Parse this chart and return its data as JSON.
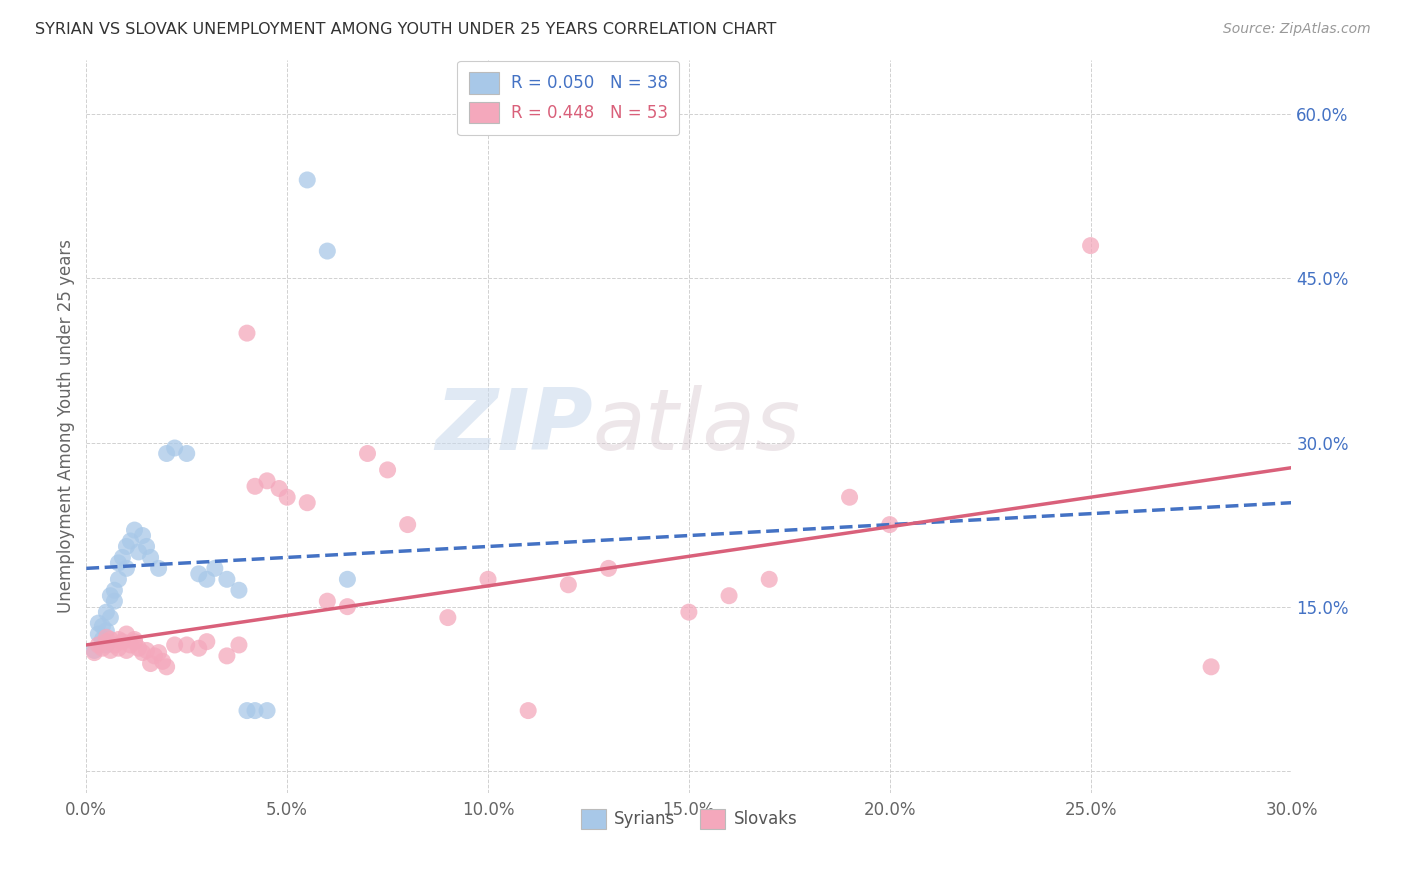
{
  "title": "SYRIAN VS SLOVAK UNEMPLOYMENT AMONG YOUTH UNDER 25 YEARS CORRELATION CHART",
  "source": "Source: ZipAtlas.com",
  "ylabel_label": "Unemployment Among Youth under 25 years",
  "xlabel_legend": [
    "Syrians",
    "Slovaks"
  ],
  "legend_line1": "R = 0.050   N = 38",
  "legend_line2": "R = 0.448   N = 53",
  "syrian_color": "#a8c8e8",
  "slovak_color": "#f4a8bc",
  "syrian_line_color": "#4472c4",
  "slovak_line_color": "#d9607a",
  "background_color": "#ffffff",
  "watermark_zip": "ZIP",
  "watermark_atlas": "atlas",
  "xlim": [
    0.0,
    0.3
  ],
  "ylim": [
    -0.02,
    0.65
  ],
  "xticks": [
    0.0,
    0.05,
    0.1,
    0.15,
    0.2,
    0.25,
    0.3
  ],
  "yticks": [
    0.0,
    0.15,
    0.3,
    0.45,
    0.6
  ],
  "xtick_labels": [
    "0.0%",
    "5.0%",
    "10.0%",
    "15.0%",
    "20.0%",
    "25.0%",
    "30.0%"
  ],
  "ytick_labels": [
    "",
    "15.0%",
    "30.0%",
    "45.0%",
    "60.0%"
  ],
  "syrian_line_start_y": 0.185,
  "syrian_line_end_y": 0.245,
  "slovak_line_start_y": 0.115,
  "slovak_line_end_y": 0.277,
  "syrian_scatter_x": [
    0.002,
    0.003,
    0.003,
    0.004,
    0.004,
    0.005,
    0.005,
    0.005,
    0.006,
    0.006,
    0.007,
    0.007,
    0.008,
    0.008,
    0.009,
    0.01,
    0.01,
    0.011,
    0.012,
    0.013,
    0.014,
    0.015,
    0.016,
    0.018,
    0.02,
    0.022,
    0.025,
    0.028,
    0.03,
    0.032,
    0.035,
    0.038,
    0.04,
    0.042,
    0.045,
    0.055,
    0.06,
    0.065
  ],
  "syrian_scatter_y": [
    0.11,
    0.125,
    0.135,
    0.12,
    0.132,
    0.128,
    0.145,
    0.115,
    0.14,
    0.16,
    0.155,
    0.165,
    0.175,
    0.19,
    0.195,
    0.205,
    0.185,
    0.21,
    0.22,
    0.2,
    0.215,
    0.205,
    0.195,
    0.185,
    0.29,
    0.295,
    0.29,
    0.18,
    0.175,
    0.185,
    0.175,
    0.165,
    0.055,
    0.055,
    0.055,
    0.54,
    0.475,
    0.175
  ],
  "slovak_scatter_x": [
    0.002,
    0.003,
    0.004,
    0.005,
    0.005,
    0.006,
    0.006,
    0.007,
    0.008,
    0.008,
    0.009,
    0.01,
    0.01,
    0.011,
    0.012,
    0.012,
    0.013,
    0.014,
    0.015,
    0.016,
    0.017,
    0.018,
    0.019,
    0.02,
    0.022,
    0.025,
    0.028,
    0.03,
    0.035,
    0.038,
    0.04,
    0.042,
    0.045,
    0.048,
    0.05,
    0.055,
    0.06,
    0.065,
    0.07,
    0.075,
    0.08,
    0.09,
    0.1,
    0.11,
    0.12,
    0.13,
    0.15,
    0.16,
    0.17,
    0.19,
    0.2,
    0.25,
    0.28
  ],
  "slovak_scatter_y": [
    0.108,
    0.115,
    0.112,
    0.118,
    0.122,
    0.11,
    0.12,
    0.115,
    0.112,
    0.12,
    0.118,
    0.11,
    0.125,
    0.115,
    0.12,
    0.118,
    0.112,
    0.108,
    0.11,
    0.098,
    0.105,
    0.108,
    0.1,
    0.095,
    0.115,
    0.115,
    0.112,
    0.118,
    0.105,
    0.115,
    0.4,
    0.26,
    0.265,
    0.258,
    0.25,
    0.245,
    0.155,
    0.15,
    0.29,
    0.275,
    0.225,
    0.14,
    0.175,
    0.055,
    0.17,
    0.185,
    0.145,
    0.16,
    0.175,
    0.25,
    0.225,
    0.48,
    0.095
  ]
}
